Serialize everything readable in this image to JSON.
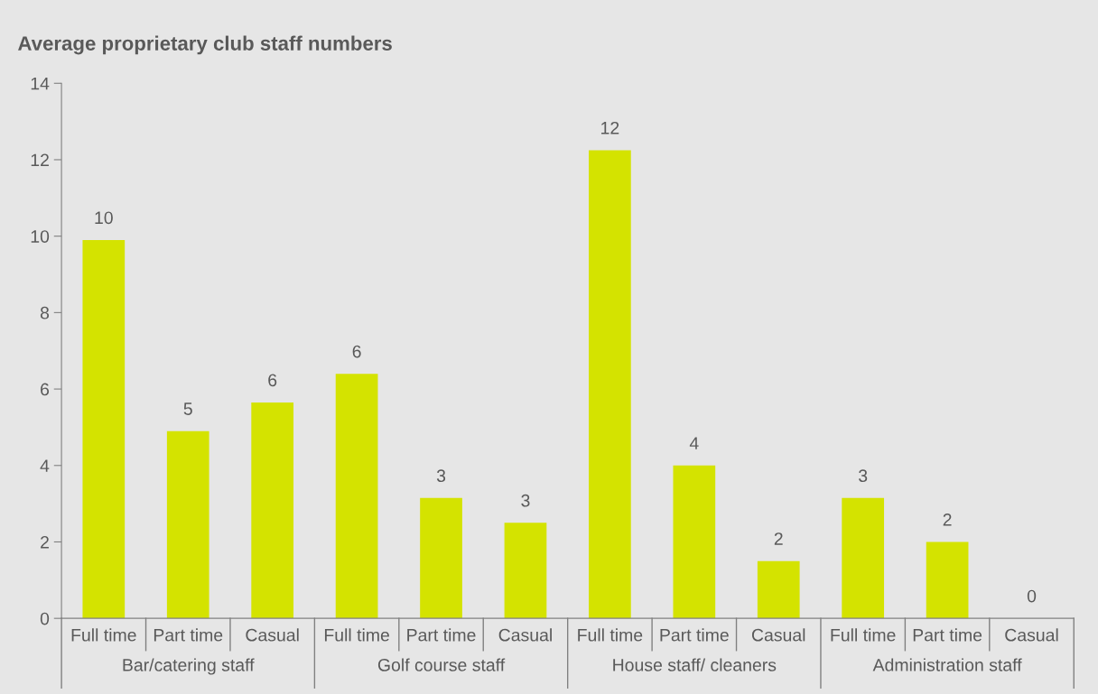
{
  "chart_data": {
    "type": "bar",
    "title": "Average proprietary club staff numbers",
    "categories": [
      "Full time",
      "Part time",
      "Casual",
      "Full time",
      "Part time",
      "Casual",
      "Full time",
      "Part time",
      "Casual",
      "Full time",
      "Part time",
      "Casual"
    ],
    "values": [
      9.9,
      4.9,
      5.65,
      6.4,
      3.15,
      2.5,
      12.25,
      4.0,
      1.5,
      3.15,
      2.0,
      0
    ],
    "value_labels": [
      "10",
      "5",
      "6",
      "6",
      "3",
      "3",
      "12",
      "4",
      "2",
      "3",
      "2",
      "0"
    ],
    "color": "#d4e300",
    "annotations": [
      "Bar/catering staff",
      "Golf course staff",
      "House staff/ cleaners",
      "Administration staff"
    ],
    "ylim": [
      0,
      14
    ],
    "yticks": [
      0,
      2,
      4,
      6,
      8,
      10,
      12,
      14
    ],
    "grid": false,
    "legend": false
  }
}
